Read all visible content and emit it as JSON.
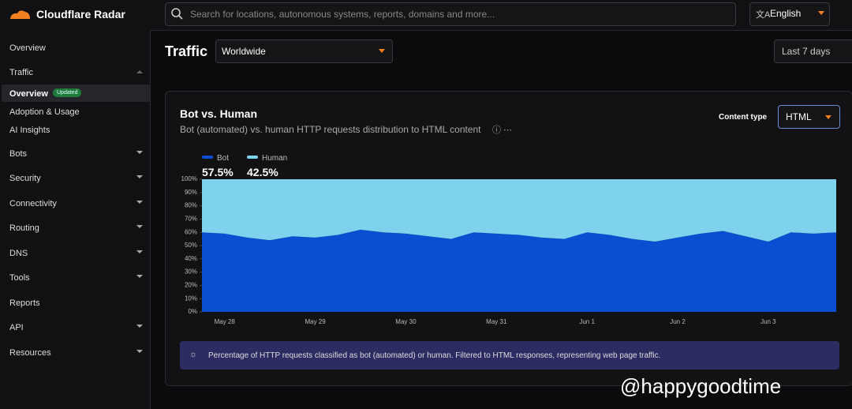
{
  "header": {
    "brand": "Cloudflare Radar",
    "search_placeholder": "Search for locations, autonomous systems, reports, domains and more...",
    "language": "English"
  },
  "sidebar": {
    "items": [
      "Overview",
      "Traffic",
      "Bots",
      "Security",
      "Connectivity",
      "Routing",
      "DNS",
      "Tools",
      "Reports",
      "API",
      "Resources"
    ],
    "traffic_sub": [
      "Overview",
      "Adoption & Usage",
      "AI Insights"
    ],
    "badge": "Updated"
  },
  "toolbar": {
    "title": "Traffic",
    "location": "Worldwide",
    "range": "Last 7 days"
  },
  "card": {
    "title": "Bot vs. Human",
    "subtitle": "Bot (automated) vs. human HTTP requests distribution to HTML content",
    "content_type_label": "Content type",
    "content_type": "HTML",
    "note": "Percentage of HTTP requests classified as bot (automated) or human. Filtered to HTML responses, representing web page traffic."
  },
  "watermark": "@happygoodtime",
  "chart_data": {
    "type": "area",
    "stacked": true,
    "categories": [
      null,
      "May 28",
      null,
      null,
      null,
      "May 29",
      null,
      null,
      null,
      "May 30",
      null,
      null,
      null,
      "May 31",
      null,
      null,
      null,
      "Jun 1",
      null,
      null,
      null,
      "Jun 2",
      null,
      null,
      null,
      "Jun 3",
      null,
      null,
      null
    ],
    "series": [
      {
        "name": "Bot",
        "share": "57.5%",
        "color": "#0a4fd1",
        "values": [
          60,
          59,
          56,
          54,
          57,
          56,
          58,
          62,
          60,
          59,
          57,
          55,
          60,
          59,
          58,
          56,
          55,
          60,
          58,
          55,
          53,
          56,
          59,
          61,
          57,
          53,
          60,
          59,
          60
        ]
      },
      {
        "name": "Human",
        "share": "42.5%",
        "color": "#7fd2ee",
        "values": [
          40,
          41,
          44,
          46,
          43,
          44,
          42,
          38,
          40,
          41,
          43,
          45,
          40,
          41,
          42,
          44,
          45,
          40,
          42,
          45,
          47,
          44,
          41,
          39,
          43,
          47,
          40,
          41,
          40
        ]
      }
    ],
    "ylim": [
      0,
      100
    ],
    "yticks": [
      {
        "value": 0,
        "label": "0%"
      },
      {
        "value": 10,
        "label": "10%"
      },
      {
        "value": 20,
        "label": "20%"
      },
      {
        "value": 30,
        "label": "30%"
      },
      {
        "value": 40,
        "label": "40%"
      },
      {
        "value": 50,
        "label": "50%"
      },
      {
        "value": 60,
        "label": "60%"
      },
      {
        "value": 70,
        "label": "70%"
      },
      {
        "value": 80,
        "label": "80%"
      },
      {
        "value": 90,
        "label": "90%"
      },
      {
        "value": 100,
        "label": "100%"
      }
    ]
  }
}
